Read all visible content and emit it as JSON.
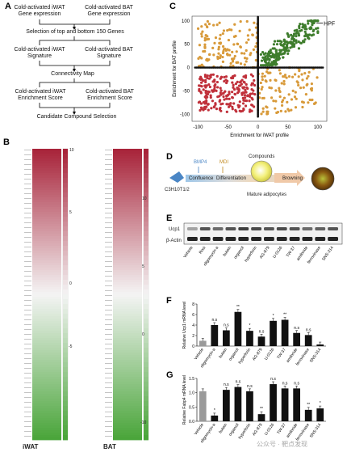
{
  "panel_a": {
    "label": "A",
    "top_left": "Cold-activated iWAT Gene expression",
    "top_right": "Cold-activated BAT Gene expression",
    "step1": "Selection of top and bottom 150 Genes",
    "sig_left": "Cold-activated iWAT Signature",
    "sig_right": "Cold-activated BAT Signature",
    "step2": "Connectivity Map",
    "enr_left": "Cold-activated iWAT Enrichment Score",
    "enr_right": "Cold-activated BAT Enrichment Score",
    "step3": "Candidate Compound Selection"
  },
  "panel_b": {
    "label": "B",
    "col_left": "iWAT",
    "col_right": "BAT",
    "scale_left": [
      "10",
      "5",
      "0",
      "-5"
    ],
    "scale_right": [
      "10",
      "5",
      "0",
      "-10"
    ],
    "colors": {
      "high": "#a8243a",
      "mid": "#f4f4f4",
      "low": "#4aa53a"
    }
  },
  "panel_c": {
    "label": "C",
    "callout": "HPF",
    "colors": {
      "q1": "#3e7d2c",
      "q2": "#d89a3a",
      "q3": "#c0303a",
      "q4": "#d89a3a"
    },
    "chart_data": {
      "type": "scatter",
      "xlabel": "Enrichment for iWAT profile",
      "ylabel": "Enrichment for BAT profile",
      "xlim": [
        -110,
        115
      ],
      "ylim": [
        -115,
        110
      ],
      "xticks": [
        "-100",
        "-50",
        "0",
        "50",
        "100"
      ],
      "yticks": [
        "100",
        "50",
        "0",
        "-50",
        "-100"
      ],
      "series": [
        {
          "quadrant": "x>0,y>0",
          "count": 220
        },
        {
          "quadrant": "x<0,y>0",
          "count": 130
        },
        {
          "quadrant": "x<0,y<0",
          "count": 230
        },
        {
          "quadrant": "x>0,y<0",
          "count": 110
        }
      ],
      "highlight": {
        "x": 95,
        "y": 95
      }
    }
  },
  "panel_d": {
    "label": "D",
    "cell_line": "C3H10T1/2",
    "bmp": "BMP4",
    "mdi": "MDI",
    "confluence": "Confluence",
    "differentiation": "Differentiation",
    "compounds": "Compounds",
    "mature": "Mature adipocytes",
    "browning": "Browning"
  },
  "panel_e": {
    "label": "E",
    "row1": "Ucp1",
    "row2": "β-Actin",
    "lanes": [
      "Vehicle",
      "Rosi",
      "oligomycin-a",
      "butein",
      "organcil",
      "hyperforin",
      "AG-879",
      "U-0126",
      "TW-37",
      "amiloride",
      "ferroxinase",
      "SNS-314"
    ]
  },
  "panel_f": {
    "label": "F",
    "chart_data": {
      "type": "bar",
      "ylabel": "Relative Ucp1 mRNA level",
      "ylim": [
        0,
        8
      ],
      "yticks": [
        "0",
        "2",
        "4",
        "6",
        "8"
      ],
      "categories": [
        "Vehicle",
        "oligomycin-a",
        "butein",
        "organcil",
        "hyperforin",
        "AG-879",
        "U-0126",
        "TW-37",
        "amiloride",
        "ferroxinase",
        "SNS-314"
      ],
      "values": [
        1.0,
        4.0,
        3.0,
        6.5,
        2.9,
        1.8,
        4.8,
        5.0,
        2.5,
        2.1,
        0.3
      ],
      "sig": [
        "",
        "n.s",
        "n.s",
        "**",
        "*",
        "n.s",
        "*",
        "**",
        "n.s",
        "n.s",
        ""
      ]
    }
  },
  "panel_g": {
    "label": "G",
    "chart_data": {
      "type": "bar",
      "ylabel": "Relative Fabp4 mRNA level",
      "ylim": [
        0,
        1.5
      ],
      "yticks": [
        "0.0",
        "0.5",
        "1.0",
        "1.5"
      ],
      "categories": [
        "Vehicle",
        "oligomycin-a",
        "butein",
        "organcil",
        "hyperforin",
        "AG-879",
        "U-0126",
        "TW-37",
        "amiloride",
        "ferroxinase",
        "SNS-314"
      ],
      "values": [
        1.05,
        0.2,
        1.1,
        1.2,
        1.05,
        0.25,
        1.3,
        1.15,
        1.15,
        0.4,
        0.45
      ],
      "sig": [
        "",
        "*",
        "n.s",
        "n.s",
        "n.s",
        "**",
        "n.s",
        "n.s",
        "n.s",
        "**",
        "*"
      ]
    }
  },
  "watermark": "公众号 · 靶点发现"
}
